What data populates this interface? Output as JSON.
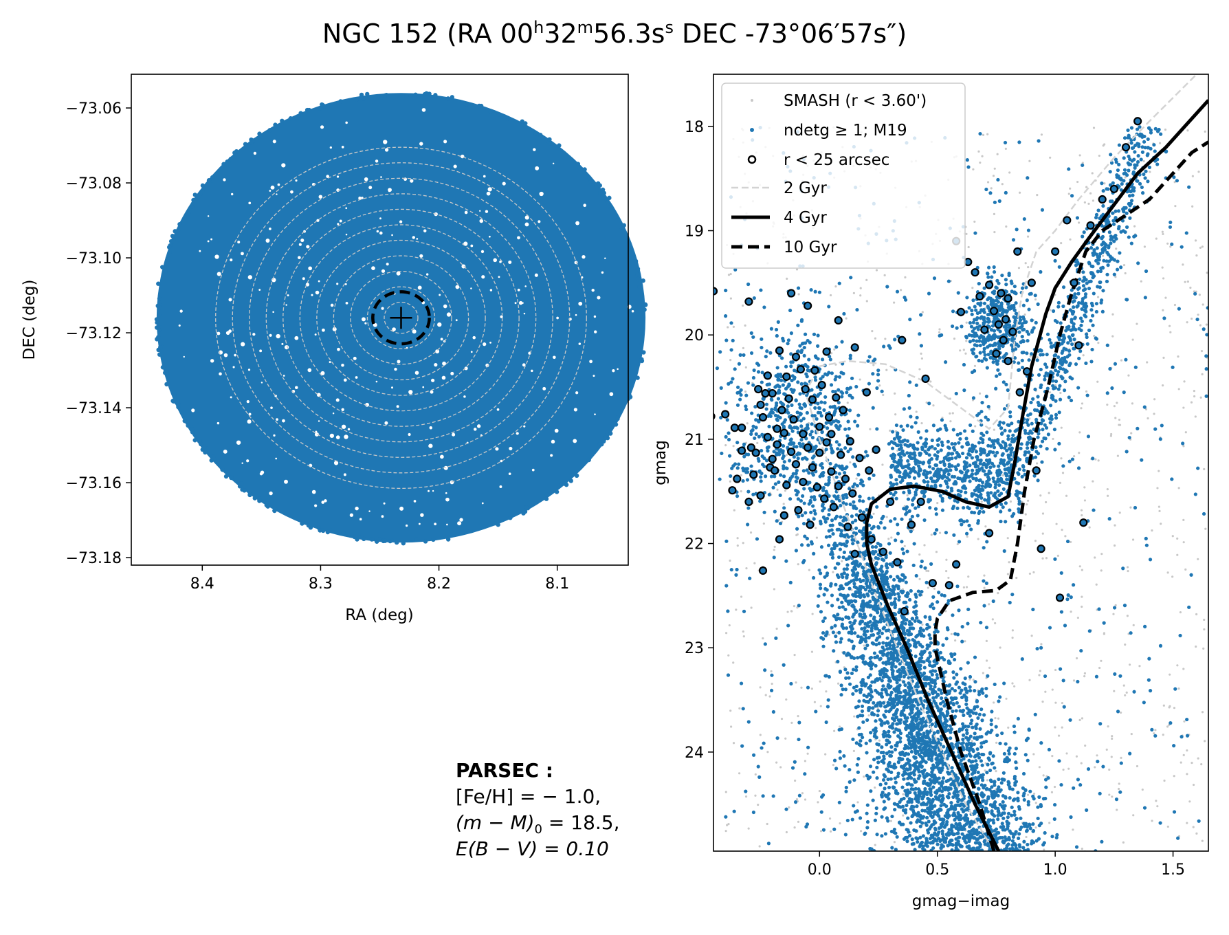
{
  "title": {
    "object": "NGC 152",
    "text_a": " (RA 00",
    "sup_h": "h",
    "text_b": "32",
    "sup_m": "m",
    "text_c": "56.3s",
    "sup_s": "s",
    "text_d": " DEC -73°06′57s″)"
  },
  "colors": {
    "field_blue": "#1f77b4",
    "smash_grey": "#c8c8c8",
    "iso_2gyr": "#d3d3d3",
    "black": "#000000"
  },
  "note": {
    "heading": "PARSEC :",
    "line1": "[Fe/H] = − 1.0,",
    "line2": "(m − M)",
    "line2_sub": "0",
    "line2_tail": " = 18.5,",
    "line3": "E(B − V) = 0.10"
  },
  "chart_data": [
    {
      "type": "scatter",
      "panel": "sky",
      "xlabel": "RA (deg)",
      "ylabel": "DEC (deg)",
      "xlim": [
        8.46,
        8.04
      ],
      "ylim": [
        -73.182,
        -73.051
      ],
      "xticks": [
        8.4,
        8.3,
        8.2,
        8.1
      ],
      "xtick_labels": [
        "8.4",
        "8.3",
        "8.2",
        "8.1"
      ],
      "yticks": [
        -73.06,
        -73.08,
        -73.1,
        -73.12,
        -73.14,
        -73.16,
        -73.18
      ],
      "ytick_labels": [
        "−73.06",
        "−73.08",
        "−73.10",
        "−73.12",
        "−73.14",
        "−73.16",
        "−73.18"
      ],
      "field_center": [
        8.232,
        -73.116
      ],
      "field_radius_arcmin": 3.6,
      "cluster_circle_radius_arcsec": 25,
      "center_marker": "+",
      "annulus_rings": 11,
      "grid": false
    },
    {
      "type": "scatter",
      "panel": "cmd",
      "xlabel": "gmag−imag",
      "ylabel": "gmag",
      "xlim": [
        -0.45,
        1.65
      ],
      "ylim": [
        24.95,
        17.5
      ],
      "y_inverted": true,
      "xticks": [
        0.0,
        0.5,
        1.0,
        1.5
      ],
      "xtick_labels": [
        "0.0",
        "0.5",
        "1.0",
        "1.5"
      ],
      "yticks": [
        18,
        19,
        20,
        21,
        22,
        23,
        24
      ],
      "ytick_labels": [
        "18",
        "19",
        "20",
        "21",
        "22",
        "23",
        "24"
      ],
      "grid": false,
      "legend_position": "upper-left",
      "legend": [
        {
          "label": "SMASH (r < 3.60')",
          "marker": "small-dot",
          "color": "#c8c8c8"
        },
        {
          "label": "ndetg  ≥  1; M19",
          "marker": "dot",
          "color": "#1f77b4"
        },
        {
          "label": "r < 25 arcsec",
          "marker": "open-circle",
          "color": "#000000"
        },
        {
          "label": "2 Gyr",
          "line": "dashed",
          "color": "#d3d3d3"
        },
        {
          "label": "4 Gyr",
          "line": "solid",
          "color": "#000000"
        },
        {
          "label": "10 Gyr",
          "line": "dashed",
          "color": "#000000"
        }
      ],
      "series": [
        {
          "name": "2 Gyr",
          "style": "dashed",
          "points": [
            [
              0.74,
              24.95
            ],
            [
              0.62,
              24.5
            ],
            [
              0.52,
              24.0
            ],
            [
              0.42,
              23.5
            ],
            [
              0.33,
              23.0
            ],
            [
              0.24,
              22.5
            ],
            [
              0.16,
              22.0
            ],
            [
              0.08,
              21.5
            ],
            [
              0.0,
              21.0
            ],
            [
              -0.06,
              20.55
            ],
            [
              0.0,
              20.3
            ],
            [
              0.12,
              20.25
            ],
            [
              0.28,
              20.28
            ],
            [
              0.45,
              20.45
            ],
            [
              0.6,
              20.7
            ],
            [
              0.72,
              20.9
            ],
            [
              0.8,
              20.7
            ],
            [
              0.83,
              20.0
            ],
            [
              0.86,
              19.6
            ],
            [
              0.92,
              19.2
            ],
            [
              1.0,
              19.0
            ],
            [
              1.1,
              18.7
            ],
            [
              1.25,
              18.3
            ],
            [
              1.4,
              17.95
            ],
            [
              1.6,
              17.5
            ]
          ]
        },
        {
          "name": "4 Gyr",
          "style": "solid",
          "points": [
            [
              0.76,
              24.95
            ],
            [
              0.66,
              24.5
            ],
            [
              0.56,
              24.0
            ],
            [
              0.46,
              23.5
            ],
            [
              0.37,
              23.0
            ],
            [
              0.29,
              22.6
            ],
            [
              0.22,
              22.2
            ],
            [
              0.2,
              22.0
            ],
            [
              0.2,
              21.8
            ],
            [
              0.22,
              21.62
            ],
            [
              0.3,
              21.48
            ],
            [
              0.4,
              21.45
            ],
            [
              0.52,
              21.5
            ],
            [
              0.62,
              21.6
            ],
            [
              0.72,
              21.65
            ],
            [
              0.8,
              21.55
            ],
            [
              0.83,
              21.2
            ],
            [
              0.86,
              20.8
            ],
            [
              0.9,
              20.3
            ],
            [
              0.96,
              19.8
            ],
            [
              1.0,
              19.55
            ],
            [
              1.07,
              19.3
            ],
            [
              1.15,
              19.05
            ],
            [
              1.25,
              18.75
            ],
            [
              1.35,
              18.45
            ],
            [
              1.47,
              18.2
            ],
            [
              1.55,
              18.0
            ],
            [
              1.65,
              17.75
            ]
          ]
        },
        {
          "name": "10 Gyr",
          "style": "dashed",
          "points": [
            [
              0.74,
              24.95
            ],
            [
              0.68,
              24.5
            ],
            [
              0.6,
              24.0
            ],
            [
              0.54,
              23.5
            ],
            [
              0.49,
              23.0
            ],
            [
              0.49,
              22.85
            ],
            [
              0.5,
              22.72
            ],
            [
              0.55,
              22.55
            ],
            [
              0.65,
              22.47
            ],
            [
              0.75,
              22.45
            ],
            [
              0.81,
              22.35
            ],
            [
              0.84,
              22.0
            ],
            [
              0.87,
              21.5
            ],
            [
              0.91,
              21.0
            ],
            [
              0.97,
              20.5
            ],
            [
              1.02,
              20.0
            ],
            [
              1.07,
              19.6
            ],
            [
              1.13,
              19.2
            ],
            [
              1.2,
              19.0
            ],
            [
              1.3,
              18.85
            ],
            [
              1.4,
              18.7
            ],
            [
              1.5,
              18.45
            ],
            [
              1.58,
              18.25
            ],
            [
              1.65,
              18.15
            ]
          ]
        }
      ],
      "cluster_stars": [
        [
          -0.46,
          20.78
        ],
        [
          -0.45,
          19.58
        ],
        [
          -0.4,
          20.76
        ],
        [
          -0.37,
          21.49
        ],
        [
          -0.36,
          20.89
        ],
        [
          -0.35,
          21.38
        ],
        [
          -0.33,
          20.89
        ],
        [
          -0.33,
          21.11
        ],
        [
          -0.3,
          21.6
        ],
        [
          -0.3,
          19.68
        ],
        [
          -0.29,
          21.08
        ],
        [
          -0.28,
          21.34
        ],
        [
          -0.27,
          21.13
        ],
        [
          -0.26,
          20.52
        ],
        [
          -0.25,
          20.67
        ],
        [
          -0.25,
          21.54
        ],
        [
          -0.24,
          22.26
        ],
        [
          -0.24,
          20.79
        ],
        [
          -0.23,
          20.56
        ],
        [
          -0.22,
          20.98
        ],
        [
          -0.22,
          20.39
        ],
        [
          -0.21,
          21.27
        ],
        [
          -0.2,
          21.19
        ],
        [
          -0.2,
          20.56
        ],
        [
          -0.19,
          21.3
        ],
        [
          -0.18,
          20.9
        ],
        [
          -0.18,
          21.05
        ],
        [
          -0.17,
          21.96
        ],
        [
          -0.17,
          20.15
        ],
        [
          -0.16,
          20.72
        ],
        [
          -0.15,
          20.94
        ],
        [
          -0.15,
          21.73
        ],
        [
          -0.14,
          20.4
        ],
        [
          -0.14,
          21.44
        ],
        [
          -0.13,
          20.61
        ],
        [
          -0.12,
          21.12
        ],
        [
          -0.12,
          19.6
        ],
        [
          -0.11,
          20.81
        ],
        [
          -0.1,
          20.21
        ],
        [
          -0.1,
          21.24
        ],
        [
          -0.09,
          21.68
        ],
        [
          -0.08,
          20.33
        ],
        [
          -0.07,
          20.95
        ],
        [
          -0.07,
          21.41
        ],
        [
          -0.06,
          20.52
        ],
        [
          -0.05,
          21.08
        ],
        [
          -0.05,
          19.72
        ],
        [
          -0.04,
          21.82
        ],
        [
          -0.03,
          20.62
        ],
        [
          -0.03,
          21.27
        ],
        [
          -0.02,
          20.34
        ],
        [
          -0.01,
          21.46
        ],
        [
          0.0,
          20.88
        ],
        [
          0.0,
          21.13
        ],
        [
          0.01,
          20.48
        ],
        [
          0.02,
          21.57
        ],
        [
          0.03,
          20.16
        ],
        [
          0.03,
          21.03
        ],
        [
          0.04,
          20.79
        ],
        [
          0.05,
          21.31
        ],
        [
          0.05,
          20.95
        ],
        [
          0.06,
          21.65
        ],
        [
          0.07,
          20.6
        ],
        [
          0.08,
          21.45
        ],
        [
          0.08,
          19.86
        ],
        [
          0.09,
          21.15
        ],
        [
          0.1,
          20.72
        ],
        [
          0.11,
          21.38
        ],
        [
          0.12,
          21.84
        ],
        [
          0.13,
          21.02
        ],
        [
          0.14,
          21.52
        ],
        [
          0.15,
          22.1
        ],
        [
          0.15,
          20.12
        ],
        [
          0.17,
          21.18
        ],
        [
          0.18,
          21.75
        ],
        [
          0.2,
          20.55
        ],
        [
          0.21,
          21.3
        ],
        [
          0.22,
          21.96
        ],
        [
          0.24,
          21.1
        ],
        [
          0.27,
          22.08
        ],
        [
          0.3,
          21.6
        ],
        [
          0.33,
          22.18
        ],
        [
          0.35,
          20.05
        ],
        [
          0.36,
          22.65
        ],
        [
          0.39,
          21.82
        ],
        [
          0.43,
          21.6
        ],
        [
          0.45,
          20.42
        ],
        [
          0.48,
          22.38
        ],
        [
          0.58,
          19.1
        ],
        [
          0.6,
          19.78
        ],
        [
          0.63,
          19.3
        ],
        [
          0.66,
          19.4
        ],
        [
          0.68,
          19.63
        ],
        [
          0.7,
          19.95
        ],
        [
          0.72,
          19.52
        ],
        [
          0.74,
          19.77
        ],
        [
          0.75,
          20.18
        ],
        [
          0.76,
          19.9
        ],
        [
          0.77,
          19.6
        ],
        [
          0.78,
          20.05
        ],
        [
          0.79,
          19.85
        ],
        [
          0.8,
          20.25
        ],
        [
          0.8,
          19.65
        ],
        [
          0.82,
          19.97
        ],
        [
          0.84,
          19.2
        ],
        [
          0.85,
          20.55
        ],
        [
          0.88,
          20.35
        ],
        [
          0.9,
          19.5
        ],
        [
          0.92,
          21.3
        ],
        [
          0.94,
          22.05
        ],
        [
          1.0,
          19.2
        ],
        [
          1.05,
          18.9
        ],
        [
          1.08,
          19.5
        ],
        [
          1.1,
          20.1
        ],
        [
          1.12,
          21.8
        ],
        [
          1.15,
          18.95
        ],
        [
          1.2,
          18.7
        ],
        [
          1.25,
          18.6
        ],
        [
          1.3,
          18.2
        ],
        [
          1.35,
          17.95
        ],
        [
          1.02,
          22.52
        ],
        [
          0.72,
          21.9
        ],
        [
          0.58,
          22.2
        ],
        [
          0.55,
          22.4
        ]
      ]
    }
  ]
}
